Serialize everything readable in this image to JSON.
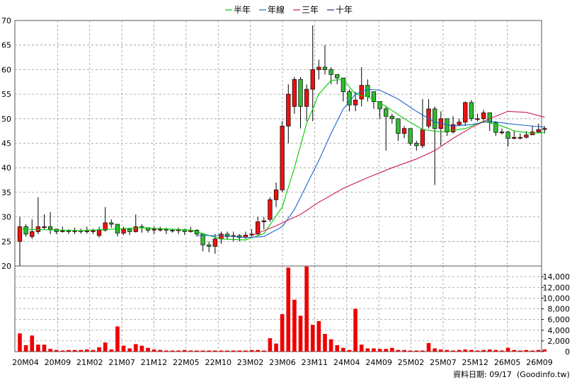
{
  "chart_data": {
    "type": "candlestick",
    "legend": [
      {
        "label": "半年",
        "color": "#00cc00"
      },
      {
        "label": "年線",
        "color": "#1a66cc"
      },
      {
        "label": "三年",
        "color": "#cc1a5a"
      },
      {
        "label": "十年",
        "color": "#4d1a99"
      }
    ],
    "price_axis": {
      "ylim": [
        20,
        70
      ],
      "ticks": [
        20,
        25,
        30,
        35,
        40,
        45,
        50,
        55,
        60,
        65,
        70
      ]
    },
    "volume_axis": {
      "ylim": [
        0,
        16000
      ],
      "ticks": [
        0,
        2000,
        4000,
        6000,
        8000,
        10000,
        12000,
        14000
      ],
      "tick_labels": [
        "0",
        "2,000",
        "4,000",
        "6,000",
        "8,000",
        "10,000",
        "12,000",
        "14,000"
      ]
    },
    "x_tick_labels": [
      "20M04",
      "20M09",
      "21M02",
      "21M07",
      "21M12",
      "22M05",
      "22M10",
      "23M02",
      "23M06",
      "23M11",
      "24M04",
      "24M09",
      "25M02",
      "25M07",
      "25M12",
      "26M05",
      "26M09"
    ],
    "colors": {
      "up": "#ee1111",
      "down": "#33bb33",
      "volume": "#ee0000",
      "grid": "#999999"
    },
    "candles": [
      [
        25,
        28,
        30,
        20
      ],
      [
        28,
        26.5,
        28.5,
        26
      ],
      [
        26,
        27,
        29.5,
        25.5
      ],
      [
        27,
        28,
        34,
        26.5
      ],
      [
        28,
        28,
        30.5,
        27.5
      ],
      [
        28,
        27.5,
        31,
        26.5
      ],
      [
        27.5,
        27,
        27.5,
        26.5
      ],
      [
        27,
        27.2,
        28,
        26.8
      ],
      [
        27.2,
        27,
        27.5,
        26.5
      ],
      [
        27,
        27.2,
        27.8,
        26.5
      ],
      [
        27.2,
        27,
        27.6,
        26.6
      ],
      [
        27,
        27.2,
        28,
        26.6
      ],
      [
        27,
        27.2,
        27.6,
        26.5
      ],
      [
        26.2,
        27.3,
        28,
        25.8
      ],
      [
        27.3,
        28.8,
        32,
        27
      ],
      [
        28.8,
        28.5,
        29.5,
        27.8
      ],
      [
        28.5,
        26.7,
        28.5,
        26
      ],
      [
        26.7,
        27.5,
        28,
        26.3
      ],
      [
        27.5,
        27,
        27.5,
        26.3
      ],
      [
        27,
        28,
        30.5,
        26.8
      ],
      [
        28,
        27.8,
        28.5,
        26.8
      ],
      [
        27.8,
        27.3,
        27.8,
        26.8
      ],
      [
        27.3,
        27.5,
        28,
        26.5
      ],
      [
        27.5,
        27.5,
        28,
        27
      ],
      [
        27.5,
        27.3,
        27.8,
        26.5
      ],
      [
        27.3,
        27.2,
        27.6,
        26.8
      ],
      [
        27.2,
        27.4,
        27.8,
        26.5
      ],
      [
        27.4,
        27,
        27.6,
        26.3
      ],
      [
        27,
        27.3,
        28,
        26.8
      ],
      [
        27.3,
        26.5,
        27.5,
        26
      ],
      [
        26.5,
        24.3,
        26.5,
        23
      ],
      [
        24.3,
        24,
        25,
        22.8
      ],
      [
        24,
        25.5,
        26.5,
        22.5
      ],
      [
        25.5,
        26.5,
        27,
        24.5
      ],
      [
        26.5,
        26,
        27,
        25.5
      ],
      [
        26,
        26.2,
        27,
        25
      ],
      [
        26.2,
        25.8,
        26.5,
        25
      ],
      [
        25.8,
        26.3,
        27,
        25.5
      ],
      [
        26.3,
        26.5,
        27.5,
        26
      ],
      [
        26.5,
        29,
        30,
        26.3
      ],
      [
        29,
        29.2,
        30,
        27.5
      ],
      [
        29.5,
        33.5,
        34,
        29
      ],
      [
        33.5,
        35.5,
        37,
        32
      ],
      [
        35.5,
        48.5,
        49.5,
        35
      ],
      [
        48.5,
        55,
        57,
        45
      ],
      [
        52.5,
        58,
        58.5,
        51
      ],
      [
        58,
        52.5,
        58.5,
        48
      ],
      [
        52.5,
        56,
        57,
        49.5
      ],
      [
        56,
        60,
        69,
        49.5
      ],
      [
        60,
        60.5,
        62,
        58
      ],
      [
        60.5,
        60,
        65,
        59
      ],
      [
        60,
        59,
        60.5,
        57
      ],
      [
        59,
        58.3,
        59,
        57
      ],
      [
        58.3,
        55.5,
        58.3,
        53.5
      ],
      [
        55.5,
        52.8,
        56,
        51.5
      ],
      [
        52.8,
        53.8,
        55.5,
        51.5
      ],
      [
        54,
        56.8,
        60.5,
        52.5
      ],
      [
        56.8,
        54.5,
        58,
        53.5
      ],
      [
        55.5,
        53.5,
        55.5,
        52
      ],
      [
        53.5,
        52,
        53.5,
        50
      ],
      [
        52,
        50.5,
        52.5,
        43.5
      ],
      [
        50.5,
        50,
        51,
        49
      ],
      [
        50,
        47,
        50,
        45.5
      ],
      [
        47,
        48,
        48.5,
        46
      ],
      [
        48,
        45,
        48,
        44.5
      ],
      [
        45,
        44.5,
        45.5,
        43.5
      ],
      [
        44.5,
        47.8,
        54,
        44
      ],
      [
        48.5,
        52,
        54,
        48
      ],
      [
        52,
        48,
        52.5,
        36.5
      ],
      [
        48,
        50,
        51.5,
        44.5
      ],
      [
        50,
        47.3,
        50,
        46.5
      ],
      [
        47.3,
        48.8,
        50.5,
        47
      ],
      [
        48.8,
        49.3,
        50,
        48.5
      ],
      [
        49.3,
        53.3,
        53.5,
        48.5
      ],
      [
        53.3,
        50,
        53.8,
        49.5
      ],
      [
        50,
        50,
        51,
        49.5
      ],
      [
        50,
        51.2,
        51.8,
        49.5
      ],
      [
        51.2,
        49.2,
        51.2,
        47.5
      ],
      [
        49.2,
        47.2,
        49.5,
        46.5
      ],
      [
        47.2,
        47.3,
        48,
        46.8
      ],
      [
        47.3,
        46,
        47.5,
        44.3
      ],
      [
        46,
        46.2,
        47.5,
        45.8
      ],
      [
        46.2,
        46.2,
        47,
        45.8
      ],
      [
        46.2,
        46.7,
        47.5,
        46
      ],
      [
        46.7,
        47.3,
        48.5,
        46.8
      ],
      [
        47.3,
        47.8,
        49,
        47
      ],
      [
        47.8,
        48,
        48.5,
        47
      ]
    ],
    "volumes": [
      3400,
      1200,
      3000,
      1300,
      1300,
      500,
      300,
      200,
      300,
      300,
      300,
      400,
      300,
      800,
      1700,
      400,
      4700,
      1100,
      600,
      1400,
      1100,
      700,
      400,
      300,
      200,
      200,
      200,
      300,
      200,
      200,
      200,
      200,
      200,
      200,
      200,
      200,
      200,
      200,
      300,
      300,
      200,
      2500,
      1500,
      7000,
      15700,
      9700,
      6700,
      15900,
      5000,
      5700,
      3300,
      2300,
      1200,
      700,
      300,
      8000,
      1300,
      600,
      600,
      500,
      500,
      700,
      300,
      300,
      200,
      200,
      200,
      1600,
      600,
      400,
      300,
      200,
      300,
      400,
      300,
      200,
      300,
      400,
      300,
      200,
      700,
      300,
      200,
      300,
      200,
      300,
      400
    ],
    "ma": {
      "半年": [
        [
          0,
          27.5
        ],
        [
          10,
          27.2
        ],
        [
          20,
          27.8
        ],
        [
          28,
          27.3
        ],
        [
          33,
          25.5
        ],
        [
          37,
          25.3
        ],
        [
          40,
          26.6
        ],
        [
          43,
          32
        ],
        [
          45,
          40
        ],
        [
          47,
          49
        ],
        [
          49,
          55
        ],
        [
          51,
          57.8
        ],
        [
          53,
          58
        ],
        [
          55,
          55
        ],
        [
          57,
          54.5
        ],
        [
          60,
          52.5
        ],
        [
          63,
          50
        ],
        [
          66,
          47.8
        ],
        [
          69,
          47.3
        ],
        [
          73,
          48
        ],
        [
          76,
          49.5
        ],
        [
          79,
          48.5
        ],
        [
          81,
          47.5
        ],
        [
          84,
          47
        ],
        [
          86,
          47.2
        ]
      ],
      "年線": [
        [
          29,
          26.2
        ],
        [
          33,
          26.2
        ],
        [
          37,
          25.8
        ],
        [
          40,
          26
        ],
        [
          43,
          28
        ],
        [
          45,
          31.5
        ],
        [
          47,
          36.5
        ],
        [
          49,
          41.5
        ],
        [
          51,
          47
        ],
        [
          53,
          52
        ],
        [
          55,
          55
        ],
        [
          57,
          56
        ],
        [
          59,
          55.8
        ],
        [
          62,
          54
        ],
        [
          65,
          51.5
        ],
        [
          68,
          49.3
        ],
        [
          71,
          48.5
        ],
        [
          74,
          48.8
        ],
        [
          77,
          49.5
        ],
        [
          80,
          49
        ],
        [
          83,
          48.6
        ],
        [
          86,
          48.3
        ]
      ],
      "三年": [
        [
          38,
          26.2
        ],
        [
          42,
          28.2
        ],
        [
          46,
          30.5
        ],
        [
          49,
          33
        ],
        [
          53,
          35.8
        ],
        [
          57,
          38
        ],
        [
          61,
          40
        ],
        [
          65,
          41.8
        ],
        [
          68,
          43.5
        ],
        [
          71,
          46
        ],
        [
          74,
          48.2
        ],
        [
          77,
          50
        ],
        [
          80,
          51.5
        ],
        [
          83,
          51.3
        ],
        [
          86,
          50.3
        ]
      ]
    }
  },
  "source_label": "資料日期: 09/17",
  "source_site": "(Goodinfo.tw)"
}
